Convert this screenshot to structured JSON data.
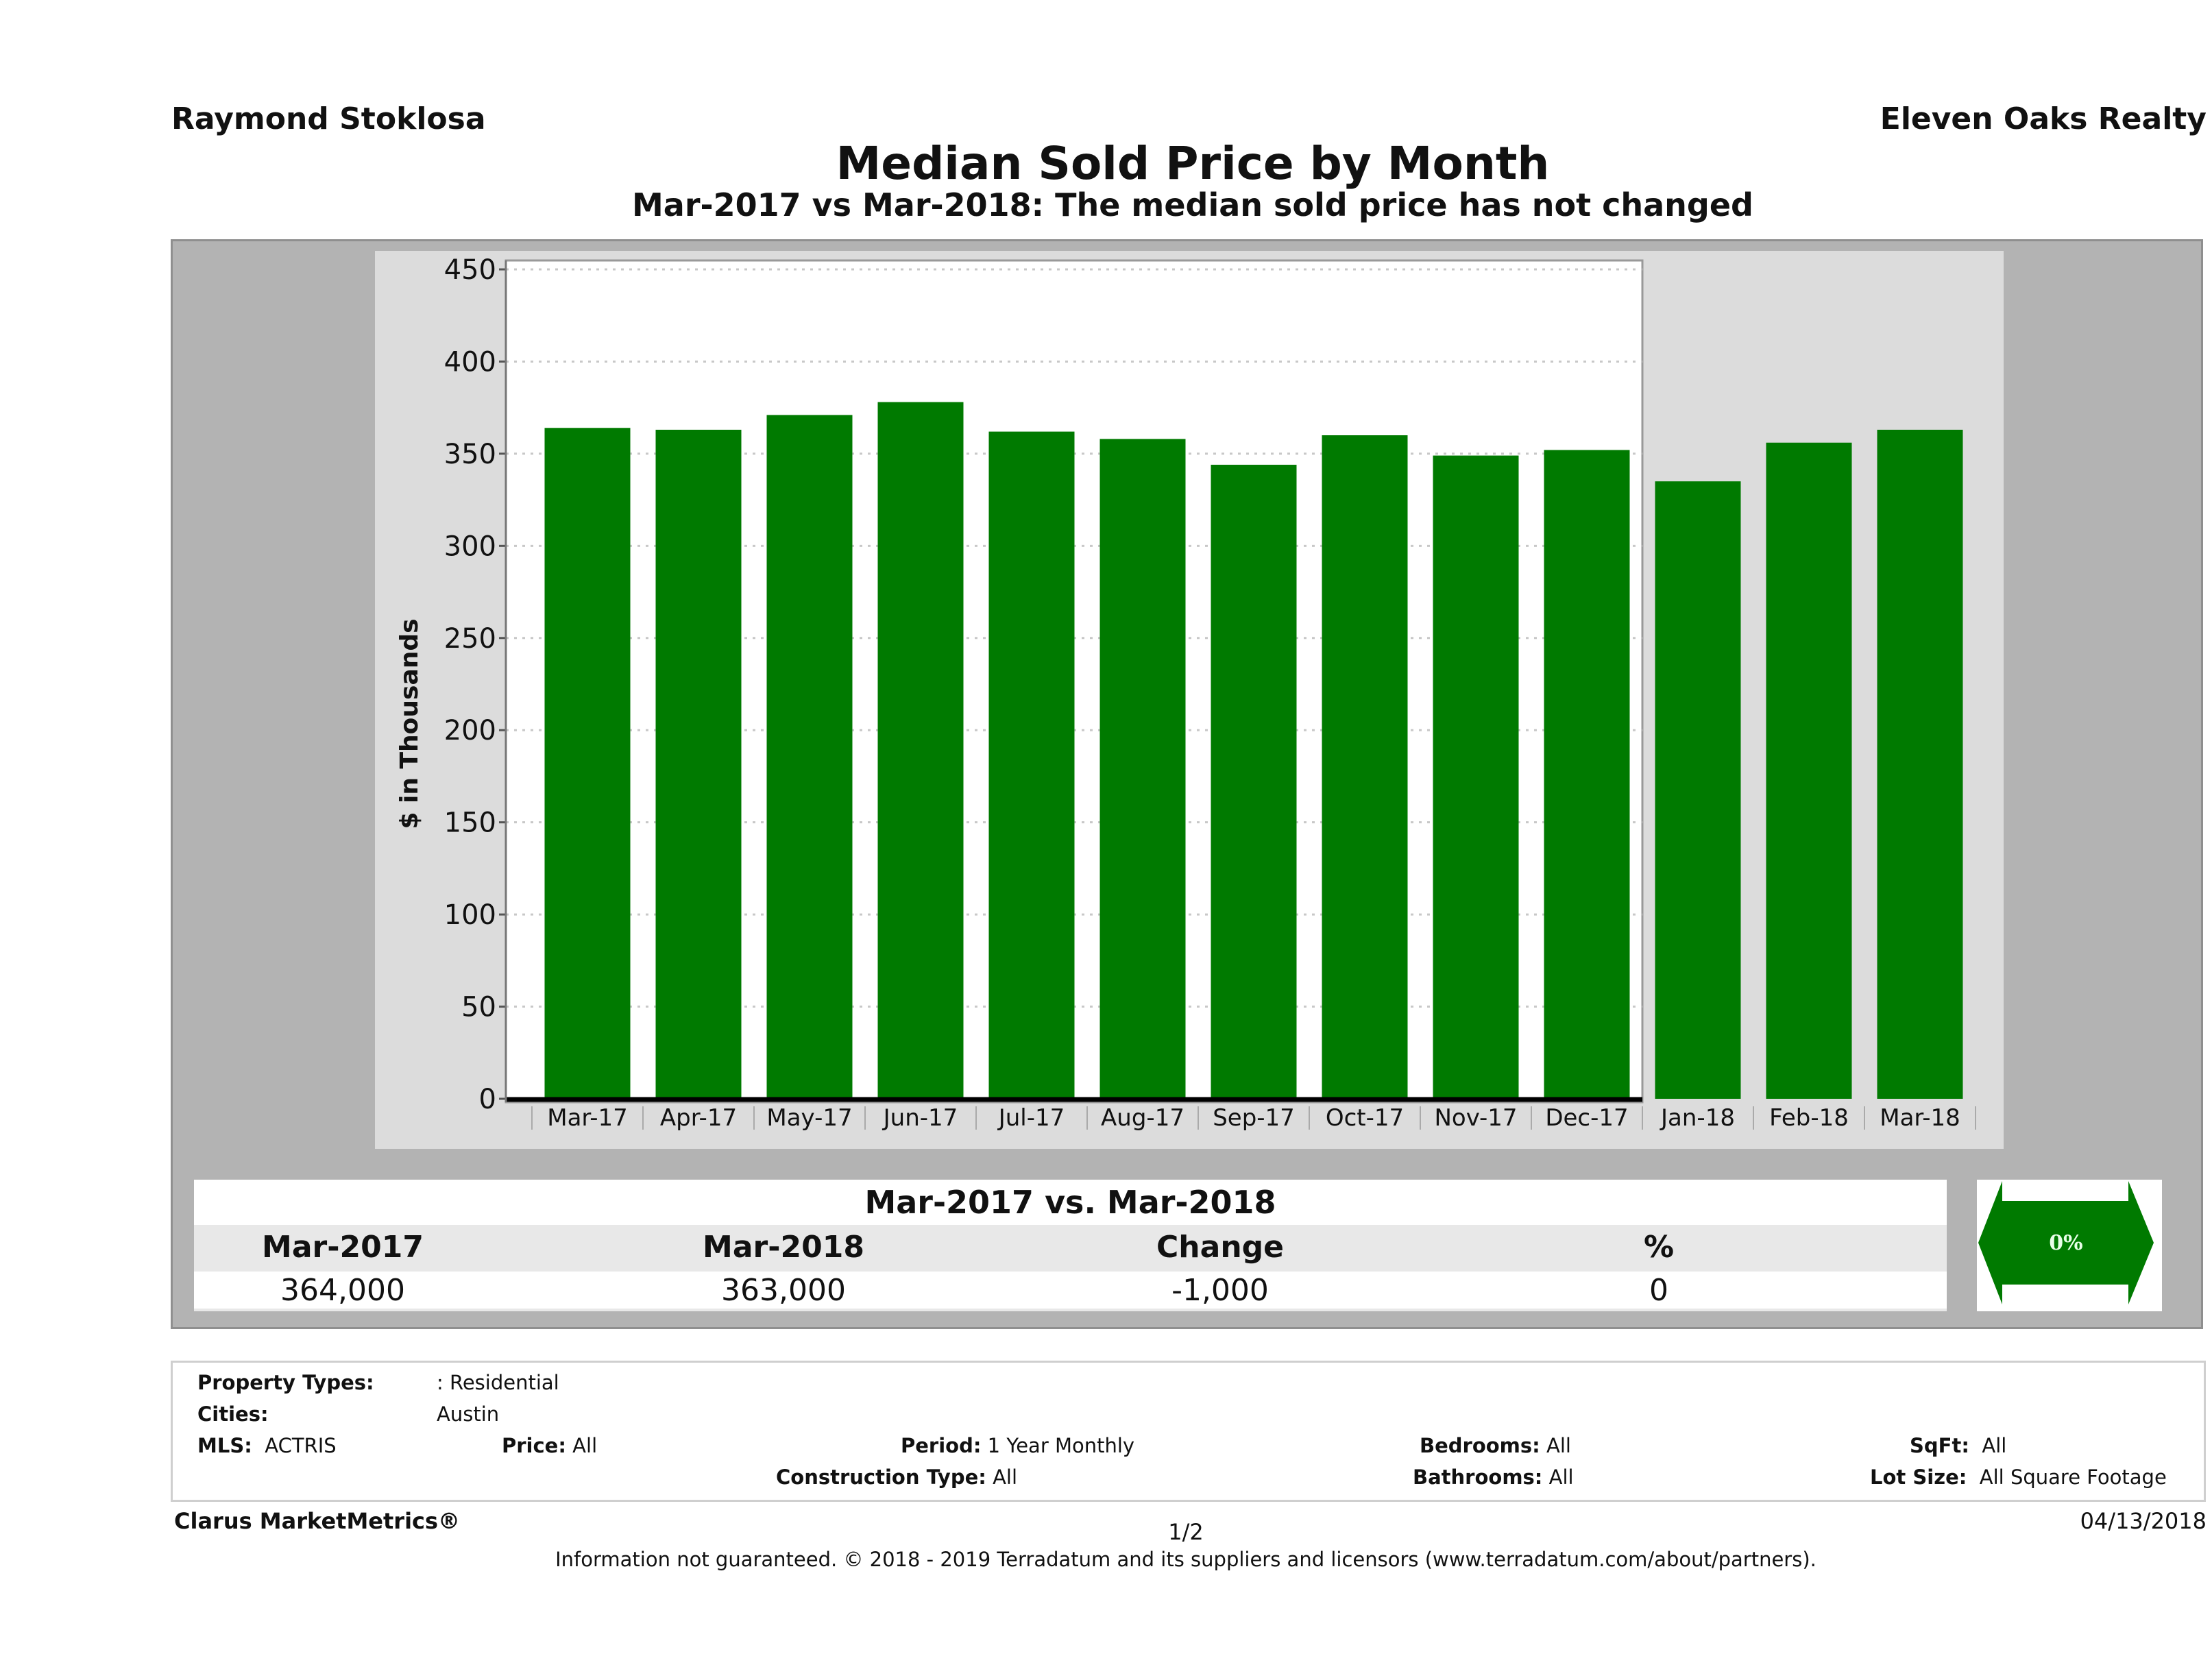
{
  "header": {
    "agent_name": "Raymond Stoklosa",
    "company_name": "Eleven Oaks Realty",
    "title": "Median Sold Price by Month",
    "subtitle": "Mar-2017 vs Mar-2018: The median sold price has not changed"
  },
  "chart_data": {
    "type": "bar",
    "title": "Median Sold Price by Month",
    "subtitle": "Mar-2017 vs Mar-2018: The median sold price has not changed",
    "xlabel": "",
    "ylabel": "$ in Thousands",
    "ylim": [
      0,
      450
    ],
    "yticks": [
      0,
      50,
      100,
      150,
      200,
      250,
      300,
      350,
      400,
      450
    ],
    "grid": true,
    "legend": "none",
    "bar_color": "#007a00",
    "categories": [
      "Mar-17",
      "Apr-17",
      "May-17",
      "Jun-17",
      "Jul-17",
      "Aug-17",
      "Sep-17",
      "Oct-17",
      "Nov-17",
      "Dec-17",
      "Jan-18",
      "Feb-18",
      "Mar-18"
    ],
    "values": [
      364,
      363,
      371,
      378,
      362,
      358,
      344,
      360,
      349,
      352,
      335,
      356,
      363
    ]
  },
  "stats": {
    "title": "Mar-2017 vs. Mar-2018",
    "headers": [
      "Mar-2017",
      "Mar-2018",
      "Change",
      "%"
    ],
    "values": [
      "364,000",
      "363,000",
      "-1,000",
      "0"
    ],
    "badge": {
      "label": "0%",
      "icon": "double-arrow-icon",
      "color": "#007a00"
    }
  },
  "filters": {
    "property_types_label": "Property Types:",
    "property_types_value": ": Residential",
    "cities_label": "Cities:",
    "cities_value": "Austin",
    "mls_label": "MLS:",
    "mls_value": "ACTRIS",
    "price_label": "Price:",
    "price_value": "All",
    "period_label": "Period:",
    "period_value": "1 Year Monthly",
    "construction_label": "Construction Type:",
    "construction_value": "All",
    "bedrooms_label": "Bedrooms:",
    "bedrooms_value": "All",
    "bathrooms_label": "Bathrooms:",
    "bathrooms_value": "All",
    "sqft_label": "SqFt:",
    "sqft_value": "All",
    "lotsize_label": "Lot Size:",
    "lotsize_value": "All Square Footage"
  },
  "footer": {
    "brand": "Clarus MarketMetrics®",
    "page": "1/2",
    "date": "04/13/2018",
    "disclaimer": "Information not guaranteed. © 2018 - 2019 Terradatum and its suppliers and licensors (www.terradatum.com/about/partners)."
  }
}
